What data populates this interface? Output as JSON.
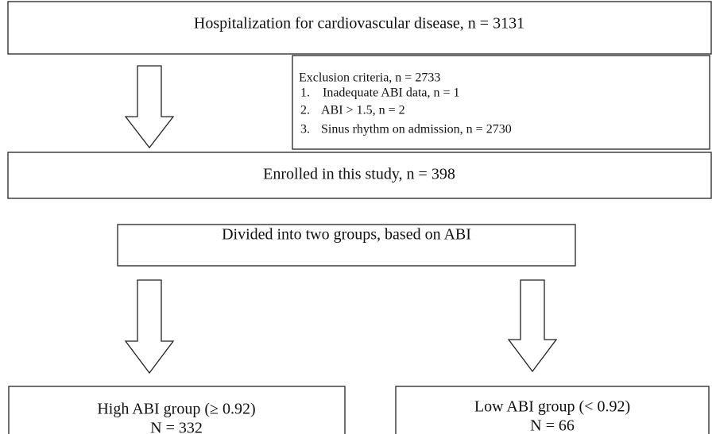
{
  "nodes": [
    {
      "label": "Hospitalization for cardiovascular disease, n = 3131"
    },
    {
      "label": "Enrolled in this study, n = 398"
    },
    {
      "label": "Divided into two groups, based on ABI"
    },
    {
      "label": "High ABI group (≥ 0.92)",
      "count": "N = 332"
    },
    {
      "label": "Low ABI group (< 0.92)",
      "count": "N = 66"
    }
  ],
  "exclusion": {
    "title": "Exclusion criteria, n = 2733",
    "items": [
      {
        "number": "1.",
        "text": "Inadequate ABI data, n = 1"
      },
      {
        "number": "2.",
        "text": "ABI > 1.5, n = 2"
      },
      {
        "number": "3.",
        "text": "Sinus rhythm on admission, n = 2730"
      }
    ]
  }
}
